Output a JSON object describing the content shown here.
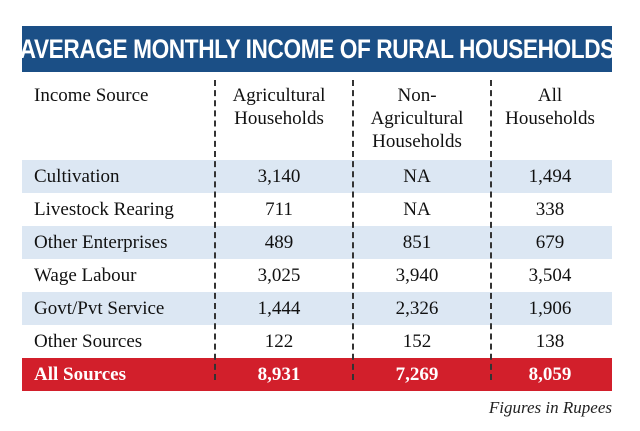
{
  "chart_data": {
    "type": "table",
    "title": "AVERAGE MONTHLY INCOME OF RURAL HOUSEHOLDS",
    "columns": [
      "Income Source",
      "Agricultural Households",
      "Non-Agricultural Households",
      "All Households"
    ],
    "rows": [
      {
        "label": "Cultivation",
        "values": [
          "3,140",
          "NA",
          "1,494"
        ]
      },
      {
        "label": "Livestock Rearing",
        "values": [
          "711",
          "NA",
          "338"
        ]
      },
      {
        "label": "Other Enterprises",
        "values": [
          "489",
          "851",
          "679"
        ]
      },
      {
        "label": "Wage Labour",
        "values": [
          "3,025",
          "3,940",
          "3,504"
        ]
      },
      {
        "label": "Govt/Pvt Service",
        "values": [
          "1,444",
          "2,326",
          "1,906"
        ]
      },
      {
        "label": "Other Sources",
        "values": [
          "122",
          "152",
          "138"
        ]
      },
      {
        "label": "All Sources",
        "values": [
          "8,931",
          "7,269",
          "8,059"
        ]
      }
    ],
    "note": "Figures in Rupees",
    "colors": {
      "banner": "#1b4f86",
      "shade": "#dce7f3",
      "total": "#d21f2b"
    }
  },
  "header_lines": {
    "col0": [
      "Income Source"
    ],
    "col1": [
      "Agricultural",
      "Households"
    ],
    "col2": [
      "Non-",
      "Agricultural",
      "Households"
    ],
    "col3": [
      "All",
      "Households"
    ]
  }
}
